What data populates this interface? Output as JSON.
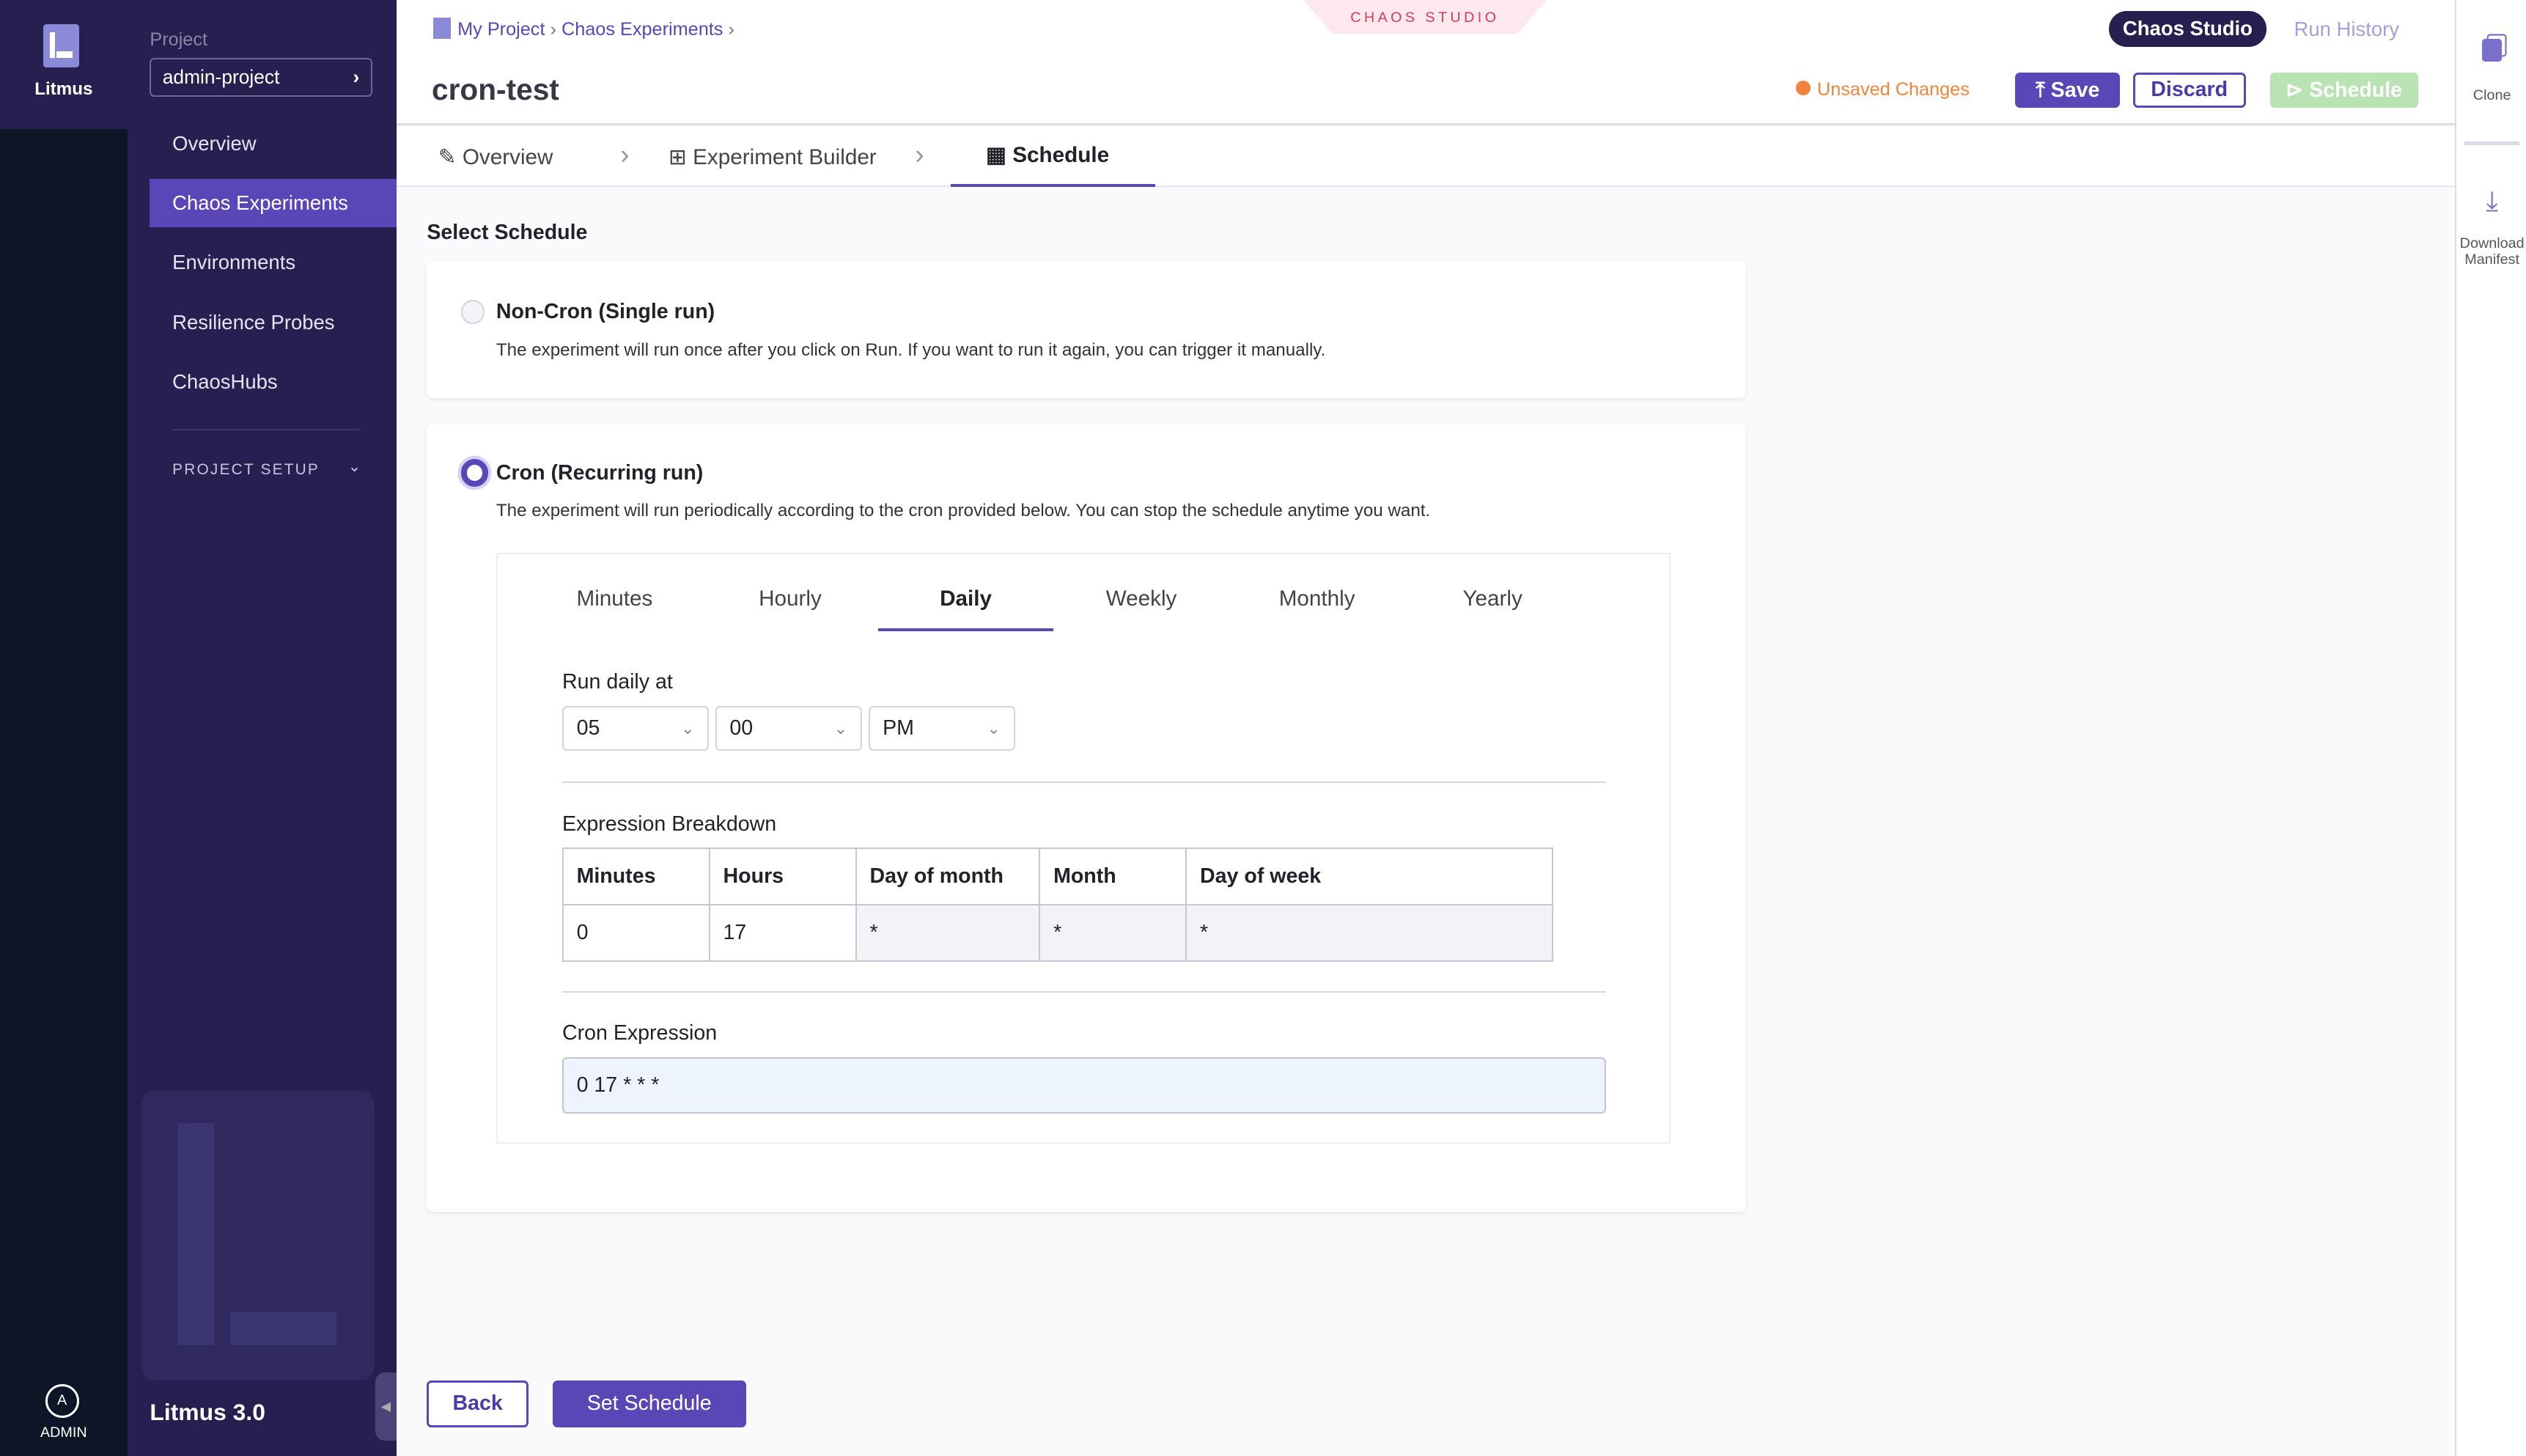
{
  "rail": {
    "logo_label": "Litmus",
    "user_initial": "A",
    "user_label": "ADMIN"
  },
  "sidebar": {
    "project_label": "Project",
    "project_name": "admin-project",
    "items": [
      {
        "label": "Overview"
      },
      {
        "label": "Chaos Experiments",
        "active": true
      },
      {
        "label": "Environments"
      },
      {
        "label": "Resilience Probes"
      },
      {
        "label": "ChaosHubs"
      }
    ],
    "project_setup": "PROJECT SETUP",
    "version": "Litmus 3.0"
  },
  "header": {
    "breadcrumbs": [
      "My Project",
      "Chaos Experiments"
    ],
    "studio_badge": "CHAOS STUDIO",
    "title": "cron-test",
    "toggle": {
      "active": "Chaos Studio",
      "inactive": "Run History"
    },
    "unsaved": "Unsaved Changes",
    "save": "Save",
    "discard": "Discard",
    "schedule": "Schedule"
  },
  "steps": [
    {
      "label": "Overview",
      "icon": "pencil-icon"
    },
    {
      "label": "Experiment Builder",
      "icon": "builder-icon"
    },
    {
      "label": "Schedule",
      "icon": "calendar-icon",
      "active": true
    }
  ],
  "schedule": {
    "heading": "Select Schedule",
    "noncron": {
      "title": "Non-Cron (Single run)",
      "desc": "The experiment will run once after you click on Run. If you want to run it again, you can trigger it manually.",
      "selected": false
    },
    "cron": {
      "title": "Cron (Recurring run)",
      "desc": "The experiment will run periodically according to the cron provided below. You can stop the schedule anytime you want.",
      "selected": true
    },
    "tabs": [
      "Minutes",
      "Hourly",
      "Daily",
      "Weekly",
      "Monthly",
      "Yearly"
    ],
    "active_tab": "Daily",
    "run_label": "Run daily at",
    "hour": "05",
    "minute": "00",
    "ampm": "PM",
    "breakdown_label": "Expression Breakdown",
    "columns": [
      "Minutes",
      "Hours",
      "Day of month",
      "Month",
      "Day of week"
    ],
    "values": [
      "0",
      "17",
      "*",
      "*",
      "*"
    ],
    "cron_label": "Cron Expression",
    "cron_value": "0 17 * * *"
  },
  "footer": {
    "back": "Back",
    "set": "Set Schedule"
  },
  "right": {
    "clone": "Clone",
    "download": "Download Manifest"
  },
  "colors": {
    "primary": "#5a46b6",
    "sidebar": "#261f50",
    "warning": "#f0843c",
    "success_disabled": "#b9e3b2"
  }
}
